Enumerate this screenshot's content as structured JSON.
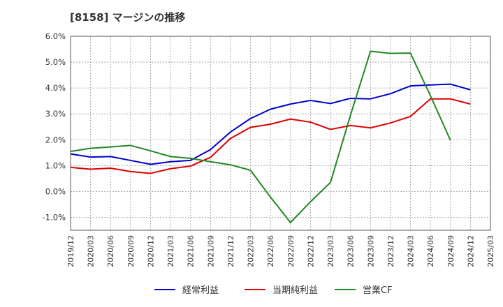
{
  "chart_data": {
    "type": "line",
    "title": "[8158]  マージンの推移",
    "xlabel": "",
    "ylabel": "",
    "ylim": [
      -1.5,
      6.0
    ],
    "yticks": [
      -1.0,
      0.0,
      1.0,
      2.0,
      3.0,
      4.0,
      5.0,
      6.0
    ],
    "ytick_labels": [
      "-1.0%",
      "0.0%",
      "1.0%",
      "2.0%",
      "3.0%",
      "4.0%",
      "5.0%",
      "6.0%"
    ],
    "x": [
      "2019/12",
      "2020/03",
      "2020/06",
      "2020/09",
      "2020/12",
      "2021/03",
      "2021/06",
      "2021/09",
      "2021/12",
      "2022/03",
      "2022/06",
      "2022/09",
      "2022/12",
      "2023/03",
      "2023/06",
      "2023/09",
      "2023/12",
      "2024/03",
      "2024/06",
      "2024/09",
      "2024/12",
      "2025/03"
    ],
    "grid": true,
    "legend_position": "bottom",
    "series": [
      {
        "name": "経常利益",
        "color": "#0000cc",
        "values": [
          1.45,
          1.33,
          1.35,
          1.2,
          1.05,
          1.15,
          1.2,
          1.62,
          2.3,
          2.82,
          3.18,
          3.38,
          3.52,
          3.4,
          3.6,
          3.58,
          3.78,
          4.08,
          4.12,
          4.15,
          3.93,
          null
        ]
      },
      {
        "name": "当期純利益",
        "color": "#dd0000",
        "values": [
          0.93,
          0.86,
          0.9,
          0.77,
          0.7,
          0.88,
          0.98,
          1.32,
          2.05,
          2.48,
          2.6,
          2.8,
          2.68,
          2.4,
          2.55,
          2.46,
          2.65,
          2.9,
          3.58,
          3.58,
          3.38,
          null
        ]
      },
      {
        "name": "営業CF",
        "color": "#228822",
        "values": [
          1.55,
          1.67,
          1.72,
          1.78,
          1.57,
          1.35,
          1.28,
          1.15,
          1.03,
          0.82,
          -0.22,
          -1.2,
          -0.4,
          0.35,
          2.95,
          5.42,
          5.34,
          5.35,
          3.7,
          1.98,
          null,
          null
        ]
      }
    ]
  }
}
